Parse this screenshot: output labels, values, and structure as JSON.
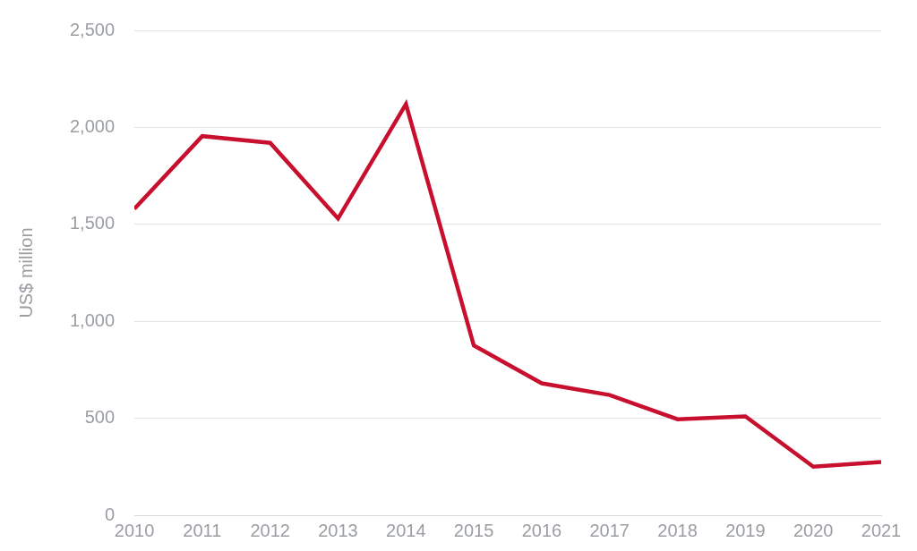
{
  "chart_data": {
    "type": "line",
    "y_label": "US$ million",
    "categories": [
      "2010",
      "2011",
      "2012",
      "2013",
      "2014",
      "2015",
      "2016",
      "2017",
      "2018",
      "2019",
      "2020",
      "2021"
    ],
    "values": [
      1580,
      1955,
      1920,
      1530,
      2120,
      875,
      680,
      620,
      495,
      510,
      250,
      275
    ],
    "color": "#c8102e",
    "ylim": [
      0,
      2500
    ],
    "yticks": [
      0,
      500,
      {
        "value": 1000,
        "label": "1,000"
      },
      {
        "value": 1500,
        "label": "1,500"
      },
      {
        "value": 2000,
        "label": "2,000"
      },
      {
        "value": 2500,
        "label": "2,500"
      }
    ],
    "grid": true
  }
}
